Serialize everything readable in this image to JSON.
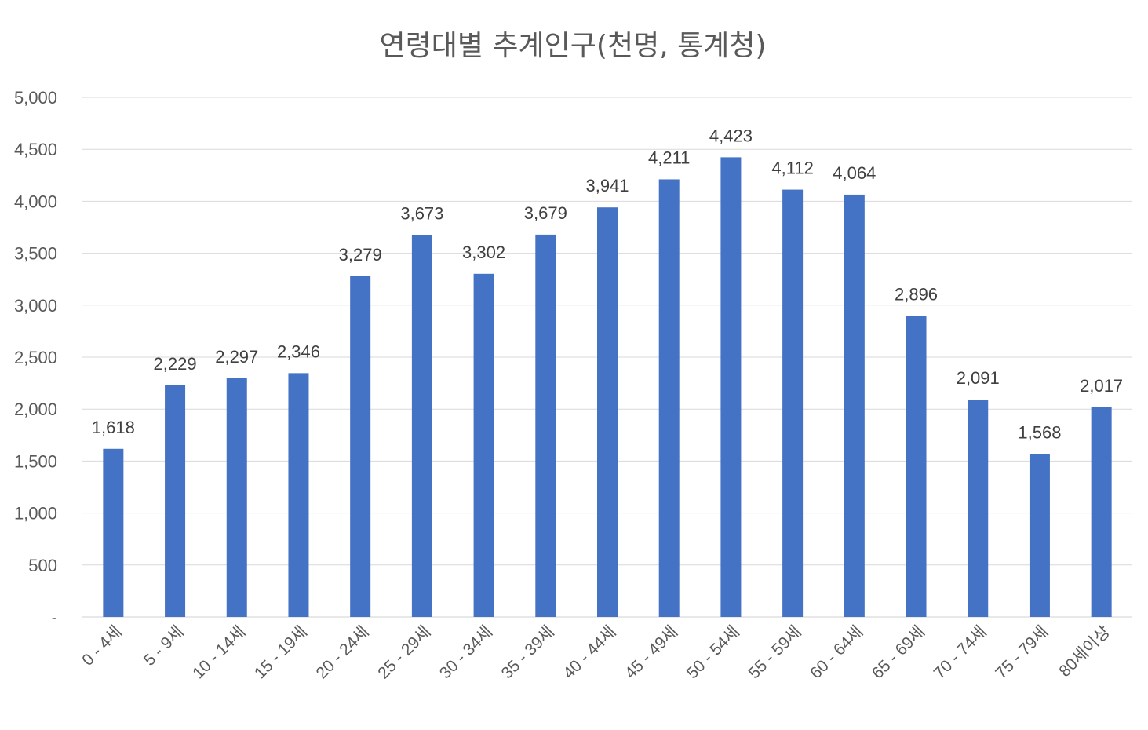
{
  "chart_data": {
    "type": "bar",
    "title": "연령대별 추계인구(천명, 통계청)",
    "xlabel": "",
    "ylabel": "",
    "ylim": [
      0,
      5000
    ],
    "y_ticks": [
      "-",
      "500",
      "1,000",
      "1,500",
      "2,000",
      "2,500",
      "3,000",
      "3,500",
      "4,000",
      "4,500",
      "5,000"
    ],
    "categories": [
      "0 - 4세",
      "5 - 9세",
      "10 - 14세",
      "15 - 19세",
      "20 - 24세",
      "25 - 29세",
      "30 - 34세",
      "35 - 39세",
      "40 - 44세",
      "45 - 49세",
      "50 - 54세",
      "55 - 59세",
      "60 - 64세",
      "65 - 69세",
      "70 - 74세",
      "75 - 79세",
      "80세이상"
    ],
    "values": [
      1618,
      2229,
      2297,
      2346,
      3279,
      3673,
      3302,
      3679,
      3941,
      4211,
      4423,
      4112,
      4064,
      2896,
      2091,
      1568,
      2017
    ],
    "data_labels": [
      "1,618",
      "2,229",
      "2,297",
      "2,346",
      "3,279",
      "3,673",
      "3,302",
      "3,679",
      "3,941",
      "4,211",
      "4,423",
      "4,112",
      "4,064",
      "2,896",
      "2,091",
      "1,568",
      "2,017"
    ],
    "bar_color": "#4472c4",
    "grid": true,
    "legend": "none"
  }
}
